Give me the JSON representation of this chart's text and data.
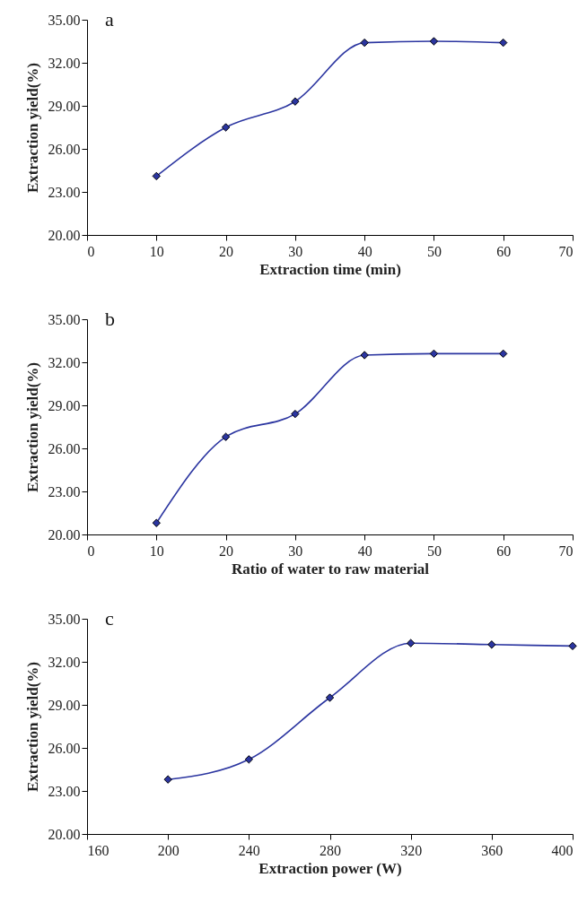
{
  "chart_data": [
    {
      "type": "line",
      "xlabel": "Extraction time (min)",
      "ylabel": "Extraction yield(%)",
      "annotations": [
        "a"
      ],
      "x": [
        10,
        20,
        30,
        40,
        50,
        60
      ],
      "marker": "diamond",
      "xlim": [
        0,
        70
      ],
      "xticks": [
        0,
        10,
        20,
        30,
        40,
        50,
        60,
        70
      ],
      "ylim": [
        20,
        35
      ],
      "yticks": [
        {
          "value": 20,
          "label": "20.00"
        },
        {
          "value": 23,
          "label": "23.00"
        },
        {
          "value": 26,
          "label": "26.00"
        },
        {
          "value": 29,
          "label": "29.00"
        },
        {
          "value": 32,
          "label": "32.00"
        },
        {
          "value": 35,
          "label": "35.00"
        }
      ],
      "series": [
        {
          "color": "#2b35a0",
          "values": [
            24.1,
            27.5,
            29.3,
            33.4,
            33.5,
            33.4
          ]
        }
      ]
    },
    {
      "type": "line",
      "xlabel": "Ratio of water to raw material",
      "ylabel": "Extraction yield(%)",
      "annotations": [
        "b"
      ],
      "x": [
        10,
        20,
        30,
        40,
        50,
        60
      ],
      "marker": "diamond",
      "xlim": [
        0,
        70
      ],
      "xticks": [
        0,
        10,
        20,
        30,
        40,
        50,
        60,
        70
      ],
      "ylim": [
        20,
        35
      ],
      "yticks": [
        {
          "value": 20,
          "label": "20.00"
        },
        {
          "value": 23,
          "label": "23.00"
        },
        {
          "value": 26,
          "label": "26.00"
        },
        {
          "value": 29,
          "label": "29.00"
        },
        {
          "value": 32,
          "label": "32.00"
        },
        {
          "value": 35,
          "label": "35.00"
        }
      ],
      "series": [
        {
          "color": "#2b35a0",
          "values": [
            20.8,
            26.8,
            28.4,
            32.5,
            32.6,
            32.6
          ]
        }
      ]
    },
    {
      "type": "line",
      "xlabel": "Extraction power (W)",
      "ylabel": "Extraction yield(%)",
      "annotations": [
        "c"
      ],
      "x": [
        200,
        240,
        280,
        320,
        360,
        400
      ],
      "marker": "diamond",
      "xlim": [
        160,
        400
      ],
      "xticks": [
        160,
        200,
        240,
        280,
        320,
        360,
        400
      ],
      "ylim": [
        20,
        35
      ],
      "yticks": [
        {
          "value": 20,
          "label": "20.00"
        },
        {
          "value": 23,
          "label": "23.00"
        },
        {
          "value": 26,
          "label": "26.00"
        },
        {
          "value": 29,
          "label": "29.00"
        },
        {
          "value": 32,
          "label": "32.00"
        },
        {
          "value": 35,
          "label": "35.00"
        }
      ],
      "series": [
        {
          "color": "#2b35a0",
          "values": [
            23.8,
            25.2,
            29.5,
            33.3,
            33.2,
            33.1
          ]
        }
      ]
    }
  ]
}
